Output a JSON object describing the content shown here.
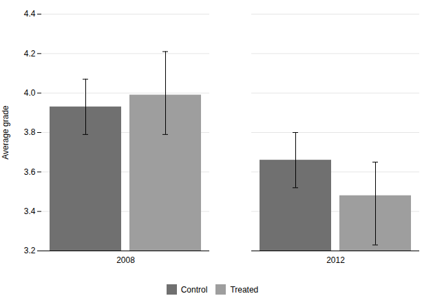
{
  "chart_data": {
    "type": "bar",
    "ylabel": "Average grade",
    "categories": [
      "2008",
      "2012"
    ],
    "series": [
      {
        "name": "Control",
        "color": "#707070",
        "values": [
          3.93,
          3.66
        ],
        "yerr_lower": [
          0.14,
          0.14
        ],
        "yerr_upper": [
          0.14,
          0.14
        ]
      },
      {
        "name": "Treated",
        "color": "#9e9e9e",
        "values": [
          3.99,
          3.48
        ],
        "yerr_lower": [
          0.2,
          0.25
        ],
        "yerr_upper": [
          0.22,
          0.17
        ]
      }
    ],
    "ylim": [
      3.2,
      4.4
    ],
    "yticks": [
      3.2,
      3.4,
      3.6,
      3.8,
      {
        "value": 4.0,
        "label": "4.0"
      },
      4.2,
      4.4
    ],
    "grid": true,
    "legend": "bottom"
  }
}
